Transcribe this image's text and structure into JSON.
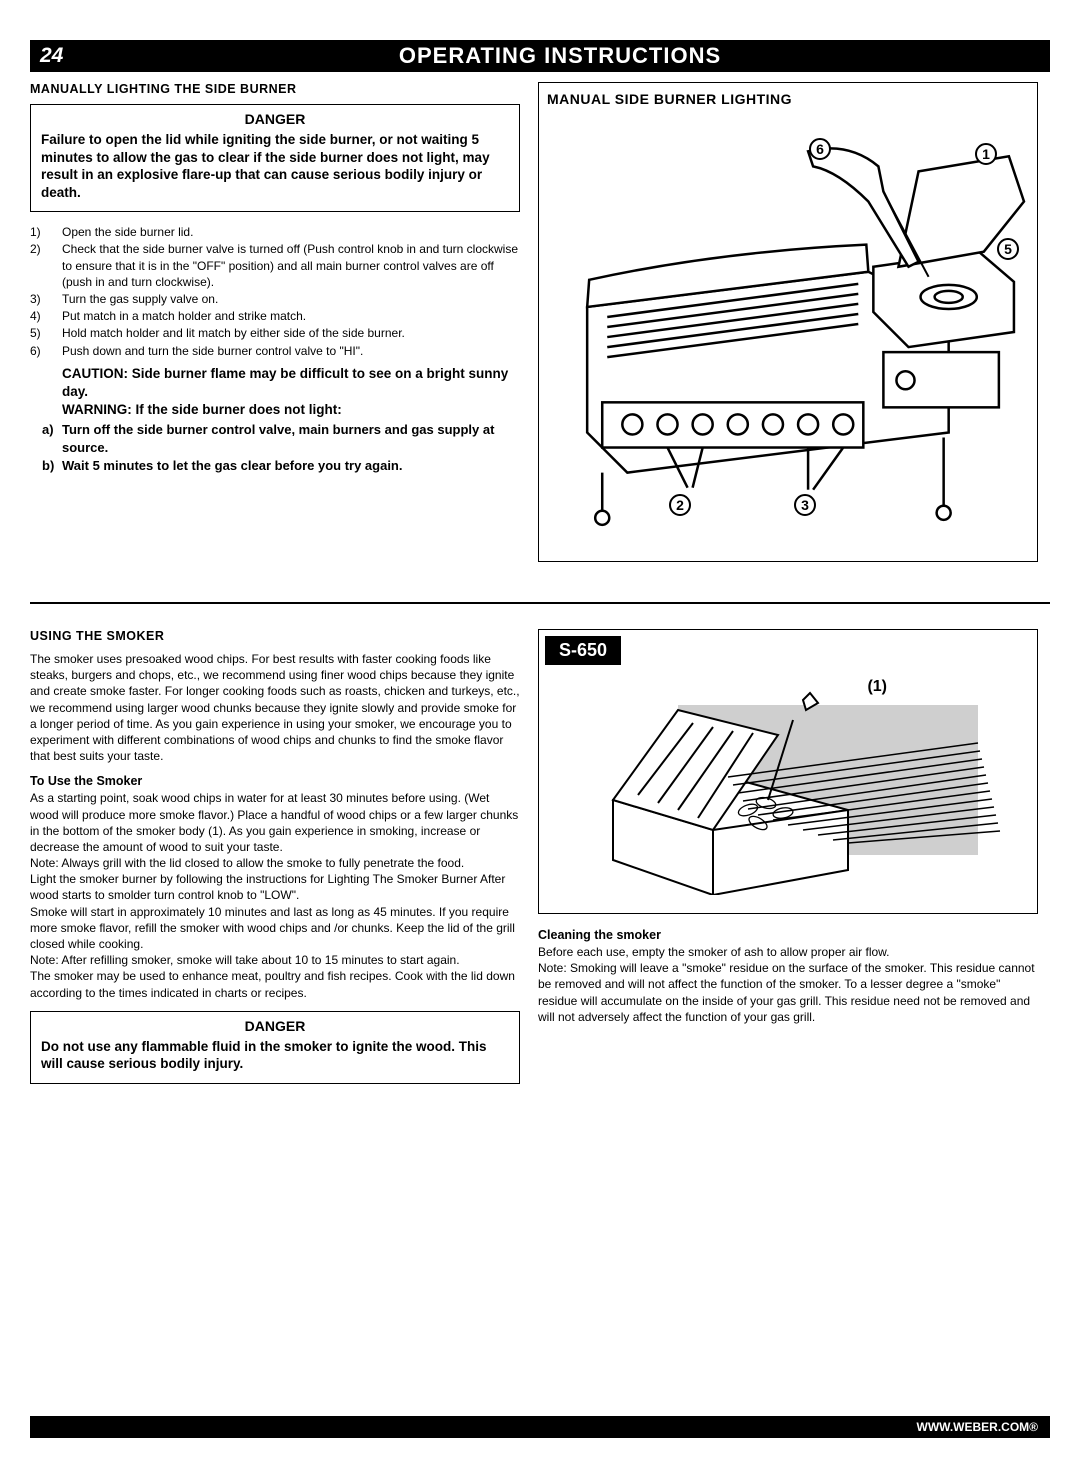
{
  "page_number": "24",
  "header_title": "OPERATING INSTRUCTIONS",
  "section1": {
    "heading": "MANUALLY LIGHTING THE SIDE BURNER",
    "danger": {
      "title": "DANGER",
      "text": "Failure to open the lid while igniting the side burner, or not waiting 5 minutes to allow the gas to clear if the side burner does not light, may result in an explosive flare-up that can cause serious bodily injury or death."
    },
    "steps": [
      {
        "n": "1)",
        "t": "Open the side burner lid."
      },
      {
        "n": "2)",
        "t": "Check that the side burner valve is turned off (Push control knob in and turn clockwise to ensure that it is in the \"OFF\" position) and all main burner control valves are off (push in and turn clockwise)."
      },
      {
        "n": "3)",
        "t": "Turn the gas supply valve on."
      },
      {
        "n": "4)",
        "t": "Put match in a match holder and strike match."
      },
      {
        "n": "5)",
        "t": "Hold match holder and lit match by either side of the side burner."
      },
      {
        "n": "6)",
        "t": "Push down and turn the side burner control valve to \"HI\"."
      }
    ],
    "caution": "CAUTION: Side burner flame may be difficult to see on a bright sunny day.",
    "warning": "WARNING: If the side burner does not light:",
    "substeps": [
      {
        "n": "a)",
        "t": "Turn off  the side burner control valve, main burners and gas supply at source."
      },
      {
        "n": "b)",
        "t": "Wait 5 minutes to let the gas clear before you try again."
      }
    ]
  },
  "diagram1": {
    "title": "MANUAL SIDE BURNER LIGHTING",
    "callouts": [
      "1",
      "2",
      "3",
      "5",
      "6"
    ]
  },
  "section2": {
    "heading": "USING THE SMOKER",
    "intro": "The smoker uses presoaked wood chips. For best results with faster cooking foods like steaks, burgers and chops, etc., we recommend using finer wood chips because they ignite and create smoke faster. For longer cooking foods such as roasts, chicken and turkeys, etc., we recommend using larger wood chunks because they ignite slowly and provide smoke for a longer period of time. As you gain experience in using your smoker, we encourage you to experiment with different combinations of wood chips and chunks to find the smoke flavor that best suits your taste.",
    "subhead": "To Use the Smoker",
    "p1": "As a starting point, soak wood chips in water for at least 30 minutes before using. (Wet wood will produce more smoke flavor.) Place a handful of wood chips or a few larger chunks in the bottom of the smoker body (1). As you gain experience in smoking, increase or decrease the amount of wood to suit your taste.",
    "p2": "Note: Always grill with the lid closed to allow the smoke to fully penetrate the food.",
    "p3": "Light the smoker burner by following the instructions for Lighting The Smoker Burner After wood starts to smolder turn control knob to \"LOW\".",
    "p4": "Smoke will start in approximately 10 minutes and last as long as 45 minutes. If you require more smoke flavor, refill the smoker with wood chips and /or chunks. Keep the lid of the grill closed while cooking.",
    "p5": "Note: After refilling smoker, smoke will take about 10 to 15 minutes to start again.",
    "p6": "The smoker may be used to enhance meat, poultry and fish recipes. Cook with the lid down according to the times indicated in charts or recipes.",
    "danger": {
      "title": "DANGER",
      "text": "Do not use any flammable fluid in the smoker to ignite the wood. This will cause serious bodily injury."
    }
  },
  "diagram2": {
    "model": "S-650",
    "callout": "(1)"
  },
  "cleaning": {
    "head": "Cleaning the smoker",
    "p1": "Before each use, empty the smoker of ash to allow proper air flow.",
    "p2": "Note: Smoking will leave a \"smoke\" residue on the surface of the smoker. This residue cannot be removed and will not affect the function of the smoker. To a lesser degree a \"smoke\" residue will accumulate on the inside of your gas grill. This residue need not be removed and will not adversely affect the function of your gas grill."
  },
  "footer": "WWW.WEBER.COM®",
  "colors": {
    "black": "#000000",
    "white": "#ffffff",
    "gray": "#cfcfcf"
  }
}
